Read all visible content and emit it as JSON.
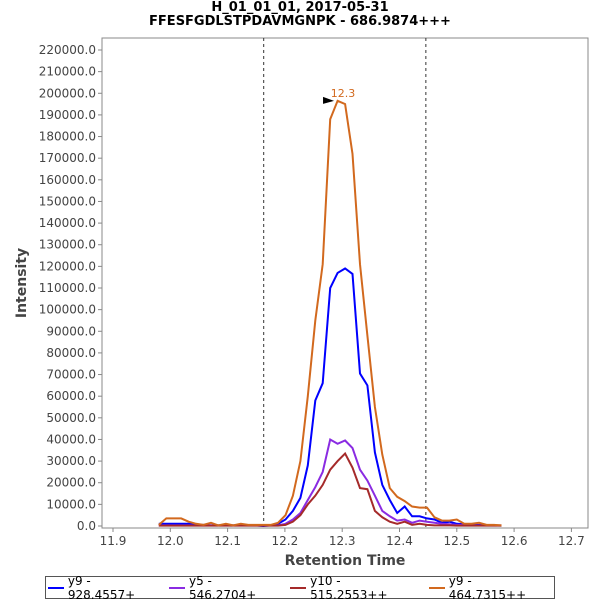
{
  "chart_data": {
    "type": "line",
    "title": "H_01_01_01, 2017-05-31",
    "subtitle": "FFESFGDLSTPDAVMGNPK - 686.9874+++",
    "xlabel": "Retention Time",
    "ylabel": "Intensity",
    "xlim": [
      11.885,
      12.73
    ],
    "ylim": [
      0,
      225000
    ],
    "xticks": [
      "11.9",
      "12.0",
      "12.1",
      "12.2",
      "12.3",
      "12.4",
      "12.5",
      "12.6",
      "12.7"
    ],
    "yticks": [
      "0.0",
      "10000.0",
      "20000.0",
      "30000.0",
      "40000.0",
      "50000.0",
      "60000.0",
      "70000.0",
      "80000.0",
      "90000.0",
      "100000.0",
      "110000.0",
      "120000.0",
      "130000.0",
      "140000.0",
      "150000.0",
      "160000.0",
      "170000.0",
      "180000.0",
      "190000.0",
      "200000.0",
      "210000.0",
      "220000.0"
    ],
    "x_start": 11.98,
    "x_step": 0.013,
    "boundaries": [
      12.163,
      12.446
    ],
    "annotation": {
      "label": "12.3",
      "x": 12.291,
      "y": 196500
    },
    "legend_position": "bottom",
    "series": [
      {
        "name": "y9 - 928.4557+",
        "color": "#0000ff",
        "values": [
          1000,
          1000,
          1000,
          1000,
          1000,
          500,
          500,
          300,
          300,
          300,
          300,
          300,
          300,
          300,
          0,
          300,
          1000,
          3000,
          7000,
          13000,
          28000,
          58000,
          66000,
          110000,
          117000,
          119000,
          116500,
          70500,
          65000,
          34000,
          19000,
          12000,
          6000,
          9000,
          4500,
          4500,
          3500,
          3000,
          1500,
          2000,
          1000,
          800,
          500,
          500,
          300,
          300,
          200
        ]
      },
      {
        "name": "y5 - 546.2704+",
        "color": "#8a2be2",
        "values": [
          300,
          300,
          300,
          300,
          300,
          300,
          300,
          300,
          300,
          300,
          300,
          300,
          300,
          300,
          300,
          300,
          300,
          1000,
          3000,
          6000,
          12000,
          18000,
          25000,
          40000,
          38000,
          39500,
          36000,
          26000,
          21000,
          14000,
          7000,
          4500,
          2500,
          3000,
          1500,
          2500,
          2000,
          1500,
          1000,
          800,
          500,
          500,
          300,
          300,
          300,
          300,
          300
        ]
      },
      {
        "name": "y10 - 515.2553++",
        "color": "#a52a2a",
        "values": [
          200,
          200,
          200,
          200,
          200,
          200,
          200,
          200,
          200,
          200,
          200,
          200,
          200,
          200,
          200,
          200,
          200,
          500,
          2000,
          5000,
          10000,
          14000,
          19000,
          26000,
          30000,
          33500,
          27000,
          17500,
          17000,
          7000,
          4000,
          2000,
          1000,
          2000,
          500,
          1000,
          500,
          300,
          300,
          300,
          200,
          200,
          200,
          200,
          200,
          200,
          200
        ]
      },
      {
        "name": "y9 - 464.7315++",
        "color": "#d2691e",
        "values": [
          500,
          3500,
          3500,
          3500,
          2000,
          1000,
          500,
          1500,
          300,
          1000,
          300,
          1000,
          500,
          500,
          500,
          500,
          1500,
          5000,
          14000,
          30000,
          60000,
          95000,
          121000,
          188000,
          196500,
          195000,
          172000,
          121000,
          88000,
          55000,
          33000,
          17500,
          13500,
          11500,
          9000,
          8500,
          8500,
          4000,
          2500,
          2500,
          3000,
          1000,
          1000,
          1500,
          500,
          500,
          300
        ]
      }
    ]
  }
}
